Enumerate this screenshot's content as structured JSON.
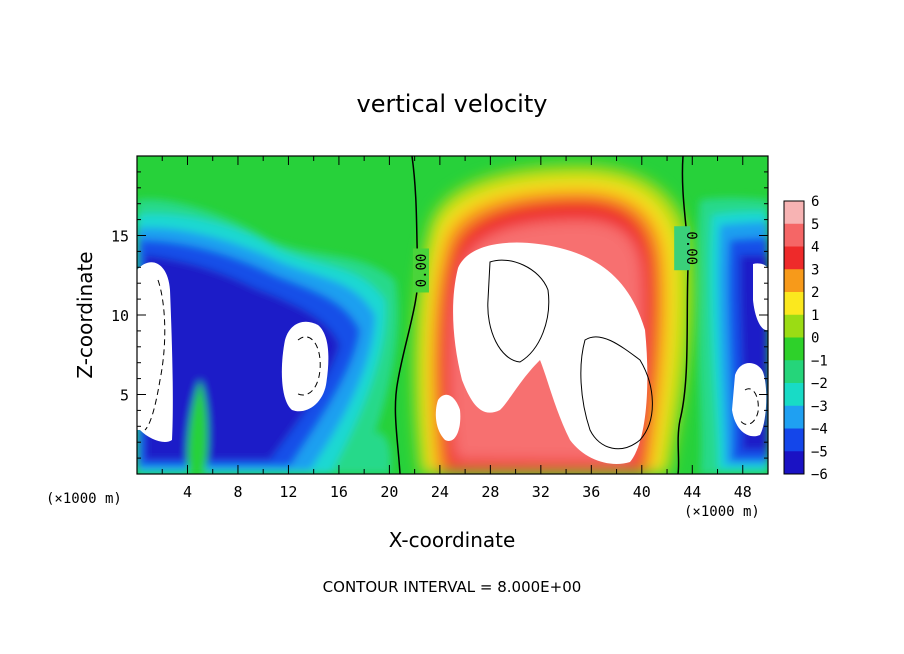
{
  "chart_data": {
    "type": "heatmap",
    "title": "vertical velocity",
    "xlabel": "X-coordinate",
    "ylabel": "Z-coordinate",
    "x_unit": "(×1000 m)",
    "x_unit_right": "(×1000 m)",
    "xlim": [
      0,
      50
    ],
    "ylim": [
      0,
      20
    ],
    "x_ticks": [
      4,
      8,
      12,
      16,
      20,
      24,
      28,
      32,
      36,
      40,
      44,
      48
    ],
    "y_ticks": [
      5,
      10,
      15
    ],
    "colorbar": {
      "levels": [
        6,
        5,
        4,
        3,
        2,
        1,
        0,
        -1,
        -2,
        -3,
        -4,
        -5,
        -6
      ],
      "colors": [
        "#f7b3b3",
        "#f56666",
        "#ee2a2a",
        "#f79a1a",
        "#fbe81e",
        "#9bdc14",
        "#2ed12a",
        "#25d57a",
        "#18dbc6",
        "#1fa0f2",
        "#1446ea",
        "#1a12c4",
        "#7b14c2"
      ]
    },
    "contour_labels": [
      "0.00",
      "0.00"
    ],
    "contour_label_x": [
      22.5,
      43.2
    ],
    "contour_label_z": [
      12.8,
      14.2
    ],
    "features": [
      {
        "kind": "updraft",
        "x_center": 32,
        "z_center": 9,
        "note": "strong"
      },
      {
        "kind": "downdraft",
        "x_center": 3,
        "z_center": 8
      },
      {
        "kind": "downdraft",
        "x_center": 13,
        "z_center": 7
      },
      {
        "kind": "downdraft",
        "x_center": 48.5,
        "z_center": 7
      }
    ],
    "footer": "CONTOUR INTERVAL = 8.000E+00"
  }
}
